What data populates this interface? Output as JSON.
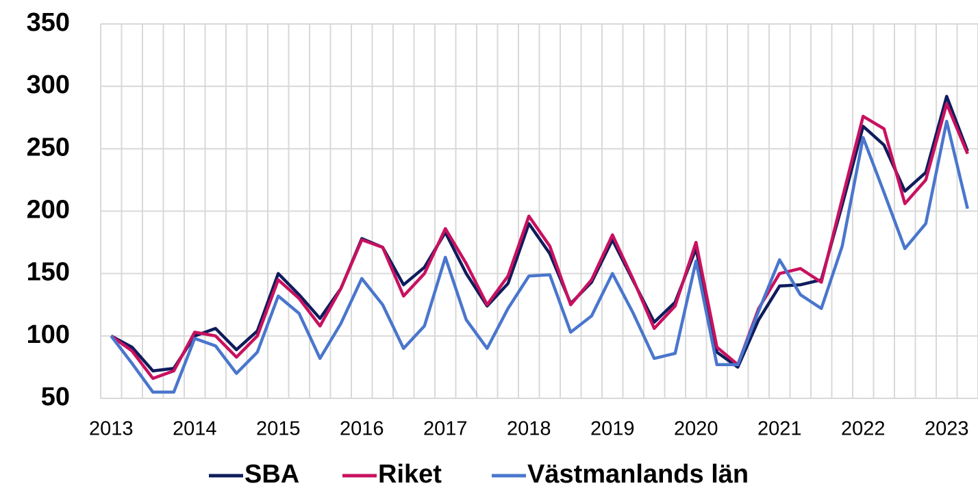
{
  "chart_data": {
    "type": "line",
    "categories": [
      "2013",
      null,
      null,
      null,
      "2014",
      null,
      null,
      null,
      "2015",
      null,
      null,
      null,
      "2016",
      null,
      null,
      null,
      "2017",
      null,
      null,
      null,
      "2018",
      null,
      null,
      null,
      "2019",
      null,
      null,
      null,
      "2020",
      null,
      null,
      null,
      "2021",
      null,
      null,
      null,
      "2022",
      null,
      null,
      null,
      "2023",
      null
    ],
    "series": [
      {
        "name": "SBA",
        "color": "#0f1c5c",
        "values": [
          100,
          91,
          72,
          74,
          100,
          106,
          89,
          104,
          150,
          133,
          114,
          138,
          178,
          171,
          141,
          155,
          183,
          150,
          124,
          142,
          190,
          166,
          126,
          143,
          177,
          144,
          111,
          127,
          170,
          87,
          75,
          113,
          140,
          141,
          145,
          205,
          268,
          253,
          216,
          231,
          292,
          248
        ]
      },
      {
        "name": "Riket",
        "color": "#c8115f",
        "values": [
          100,
          88,
          66,
          72,
          103,
          100,
          83,
          100,
          145,
          130,
          108,
          138,
          177,
          171,
          132,
          150,
          186,
          158,
          125,
          148,
          196,
          172,
          125,
          145,
          181,
          145,
          106,
          124,
          175,
          91,
          77,
          122,
          150,
          154,
          143,
          210,
          276,
          266,
          206,
          225,
          286,
          246
        ]
      },
      {
        "name": "Västmanlands län",
        "color": "#4a76cc",
        "values": [
          100,
          78,
          55,
          55,
          98,
          92,
          70,
          87,
          132,
          118,
          82,
          110,
          146,
          125,
          90,
          108,
          163,
          113,
          90,
          122,
          148,
          149,
          103,
          116,
          150,
          118,
          82,
          86,
          160,
          77,
          77,
          120,
          161,
          133,
          122,
          172,
          259,
          215,
          170,
          190,
          272,
          202
        ]
      }
    ],
    "ylim": [
      50,
      350
    ],
    "yticks": [
      50,
      100,
      150,
      200,
      250,
      300,
      350
    ],
    "grid": true,
    "legend": "bottom"
  }
}
